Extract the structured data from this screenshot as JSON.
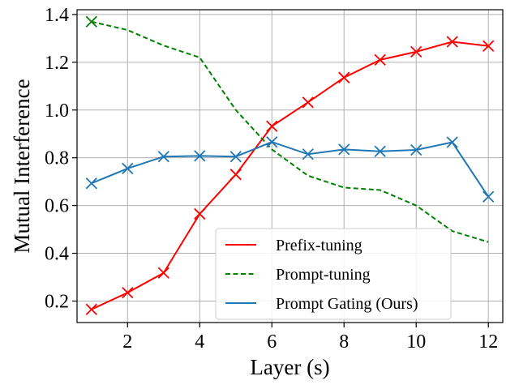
{
  "chart_data": {
    "type": "line",
    "title": "",
    "xlabel": "Layer (s)",
    "ylabel": "Mutual Interference",
    "xlim": [
      0.6,
      12.4
    ],
    "ylim": [
      0.11,
      1.42
    ],
    "xticks": [
      2,
      4,
      6,
      8,
      10,
      12
    ],
    "yticks": [
      0.2,
      0.4,
      0.6,
      0.8,
      1.0,
      1.2,
      1.4
    ],
    "ytick_labels": [
      "0.2",
      "0.4",
      "0.6",
      "0.8",
      "1.0",
      "1.2",
      "1.4"
    ],
    "grid": true,
    "legend_position": "lower-center",
    "series": [
      {
        "name": "Prefix-tuning",
        "color": "#ff0000",
        "linestyle": "solid",
        "marker": "x",
        "x": [
          1,
          2,
          3,
          4,
          5,
          6,
          7,
          8,
          9,
          10,
          11,
          12
        ],
        "values": [
          0.165,
          0.235,
          0.318,
          0.565,
          0.73,
          0.932,
          1.032,
          1.136,
          1.21,
          1.244,
          1.286,
          1.268
        ]
      },
      {
        "name": "Prompt-tuning",
        "color": "#008000",
        "linestyle": "dashed",
        "marker": "x-first",
        "x": [
          1,
          2,
          3,
          4,
          5,
          6,
          7,
          8,
          9,
          10,
          11,
          12
        ],
        "values": [
          1.37,
          1.335,
          1.27,
          1.22,
          1.0,
          0.835,
          0.725,
          0.675,
          0.665,
          0.6,
          0.493,
          0.447
        ]
      },
      {
        "name": "Prompt Gating (Ours)",
        "color": "#1f77b4",
        "linestyle": "solid",
        "marker": "x",
        "x": [
          1,
          2,
          3,
          4,
          5,
          6,
          7,
          8,
          9,
          10,
          11,
          12
        ],
        "values": [
          0.693,
          0.755,
          0.805,
          0.808,
          0.805,
          0.866,
          0.815,
          0.835,
          0.827,
          0.833,
          0.865,
          0.637
        ]
      }
    ]
  }
}
